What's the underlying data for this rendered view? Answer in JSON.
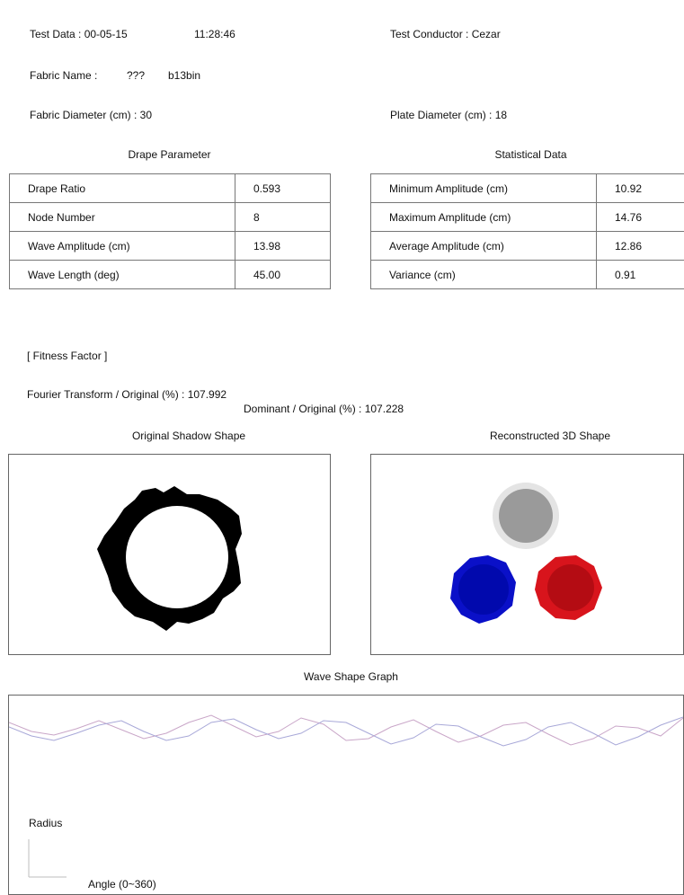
{
  "header": {
    "test_date": "Test Data : 00-05-15",
    "test_time": "11:28:46",
    "conductor": "Test Conductor : Cezar",
    "fabric_name_label": "Fabric Name :",
    "fabric_name_q": "???",
    "fabric_name_value": "b13bin",
    "fabric_diameter": "Fabric Diameter (cm) : 30",
    "plate_diameter": "Plate Diameter (cm) : 18"
  },
  "drape": {
    "title": "Drape Parameter",
    "rows": [
      {
        "label": "Drape Ratio",
        "value": "0.593"
      },
      {
        "label": "Node Number",
        "value": "8"
      },
      {
        "label": "Wave Amplitude (cm)",
        "value": "13.98"
      },
      {
        "label": "Wave Length (deg)",
        "value": "45.00"
      }
    ]
  },
  "stats": {
    "title": "Statistical Data",
    "rows": [
      {
        "label": "Minimum Amplitude (cm)",
        "value": "10.92"
      },
      {
        "label": "Maximum Amplitude (cm)",
        "value": "14.76"
      },
      {
        "label": "Average Amplitude (cm)",
        "value": "12.86"
      },
      {
        "label": "Variance (cm)",
        "value": "0.91"
      }
    ]
  },
  "fitness": {
    "heading": "[ Fitness Factor ]",
    "fourier": "Fourier Transform / Original (%) : 107.992",
    "dominant": "Dominant / Original (%) : 107.228"
  },
  "shapes": {
    "original_title": "Original Shadow Shape",
    "reconstructed_title": "Reconstructed 3D Shape",
    "colors": {
      "gray": "#9a9a9a",
      "blue": "#0a10c8",
      "red": "#d8141c"
    }
  },
  "wave": {
    "title": "Wave Shape Graph",
    "y_label": "Radius",
    "x_label": "Angle (0~360)",
    "colors": {
      "series_a": "#c9a6c8",
      "series_b": "#a8a8d8"
    }
  }
}
